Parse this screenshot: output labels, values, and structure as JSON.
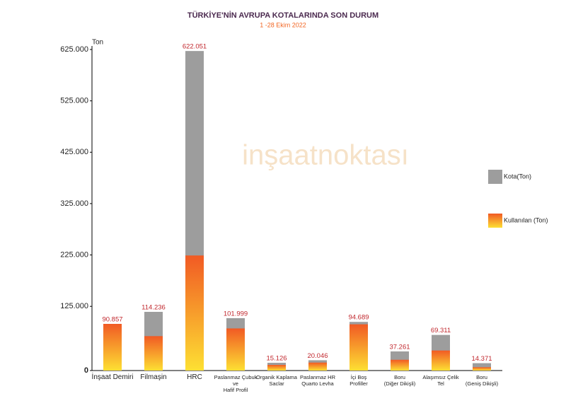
{
  "chart_data": {
    "type": "bar",
    "title": "TÜRKİYE'NİN AVRUPA KOTALARINDA SON DURUM",
    "subtitle": "1 -28 Ekim 2022",
    "y_label": "Ton",
    "watermark": "inşaatnoktası",
    "categories": [
      "İnşaat Demiri",
      "Filmaşin",
      "HRC",
      "Paslanmaz Çubuk\nve\nHafif Profil",
      "Organik Kaplama\nSaclar",
      "Paslanmaz HR\nQuarto Levha",
      "İçi Boş\nProfiller",
      "Boru\n(Diğer Dikişli)",
      "Alaşımsız Çelik\nTel",
      "Boru\n(Geniş Dikişli)"
    ],
    "series": [
      {
        "name": "Kota(Ton)",
        "color": "#9d9d9d",
        "values": [
          90857,
          114236,
          622051,
          101999,
          15126,
          20046,
          94689,
          37261,
          69311,
          14371
        ],
        "value_labels": [
          "90.857",
          "114.236",
          "622.051",
          "101.999",
          "15.126",
          "20.046",
          "94.689",
          "37.261",
          "69.311",
          "14.371"
        ]
      },
      {
        "name": "Kullanılan (Ton)",
        "color": [
          "#f15a24",
          "#fde033"
        ],
        "values": [
          90857,
          67000,
          224000,
          82000,
          11000,
          15500,
          90000,
          21000,
          39000,
          6500
        ]
      }
    ],
    "ylim": [
      0,
      625000
    ],
    "yticks": [
      {
        "value": 0,
        "label": "0"
      },
      {
        "value": 125000,
        "label": "125.000"
      },
      {
        "value": 225000,
        "label": "225.000"
      },
      {
        "value": 325000,
        "label": "325.000"
      },
      {
        "value": 425000,
        "label": "425.000"
      },
      {
        "value": 525000,
        "label": "525.000"
      },
      {
        "value": 625000,
        "label": "625.000"
      }
    ],
    "grid": false,
    "legend": "right"
  }
}
